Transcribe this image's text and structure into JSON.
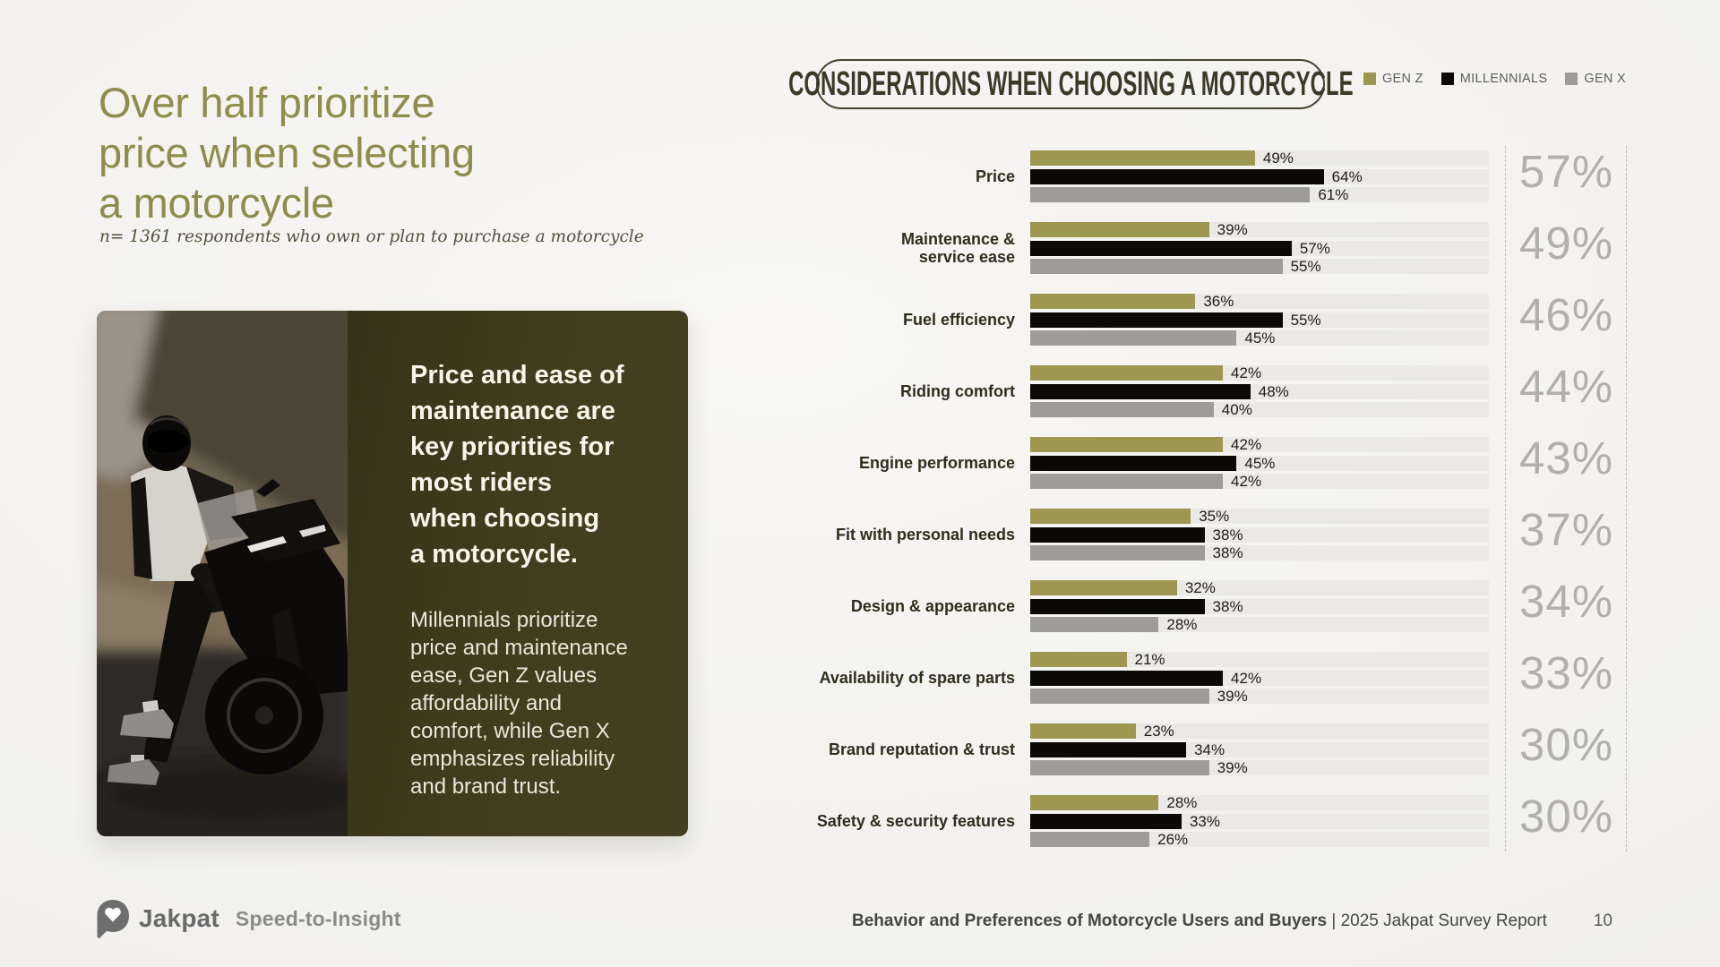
{
  "slide": {
    "title": "Over half prioritize\nprice when selecting\na motorcycle",
    "subtitle": "n= 1361 respondents who own or plan to purchase a motorcycle",
    "insight": {
      "heading": "Price and ease of\nmaintenance are\nkey priorities for\nmost riders\nwhen choosing\na motorcycle.",
      "body": "Millennials prioritize\nprice and maintenance\nease, Gen Z values\naffordability  and\ncomfort, while Gen X\nemphasizes reliability\nand brand trust.",
      "photo_alt": "rider-on-black-sport-motorcycle"
    },
    "footer": {
      "brand": "Jakpat",
      "tagline": "Speed-to-Insight",
      "report": "Behavior and Preferences of Motorcycle Users and Buyers",
      "report_suffix": " | 2025 Jakpat Survey Report",
      "page": "10"
    },
    "accent_colors": {
      "title_olive": "#8F8D4B",
      "panel_olive": "#403C1E",
      "pill_border": "#45442D"
    }
  },
  "chart_data": {
    "type": "bar",
    "orientation": "horizontal",
    "title": "CONSIDERATIONS WHEN CHOOSING A MOTORCYCLE",
    "legend_position": "top-right",
    "xlim": [
      0,
      100
    ],
    "value_suffix": "%",
    "grid": false,
    "categories": [
      "Price",
      "Maintenance &\nservice ease",
      "Fuel efficiency",
      "Riding comfort",
      "Engine performance",
      "Fit with personal needs",
      "Design & appearance",
      "Availability of spare parts",
      "Brand reputation & trust",
      "Safety & security features"
    ],
    "series": [
      {
        "name": "GEN Z",
        "color": "#9C9851",
        "values": [
          49,
          39,
          36,
          42,
          42,
          35,
          32,
          21,
          23,
          28
        ]
      },
      {
        "name": "MILLENNIALS",
        "color": "#0B0A07",
        "values": [
          64,
          57,
          55,
          48,
          45,
          38,
          38,
          42,
          34,
          33
        ]
      },
      {
        "name": "GEN X",
        "color": "#9D9C9A",
        "values": [
          61,
          55,
          45,
          40,
          42,
          38,
          28,
          39,
          39,
          26
        ]
      }
    ],
    "totals": [
      57,
      49,
      46,
      44,
      43,
      37,
      34,
      33,
      30,
      30
    ],
    "colors": {
      "track": "#EAE9E6",
      "total_text": "#B1B0AE",
      "category_label": "#2F2D1C",
      "value_label": "#1E1C17",
      "dashed_line": "#BFBEBC"
    }
  }
}
